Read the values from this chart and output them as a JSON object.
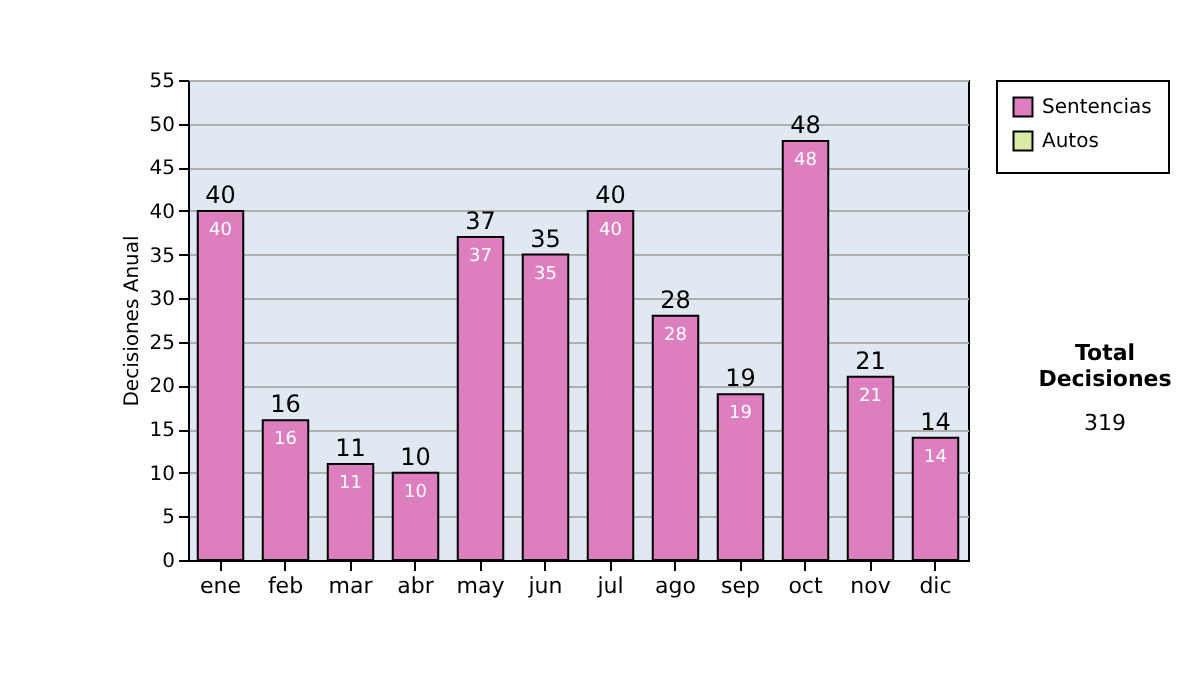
{
  "chart_data": {
    "type": "bar",
    "stacked": true,
    "ylabel": "Decisiones Anual",
    "categories": [
      "ene",
      "feb",
      "mar",
      "abr",
      "may",
      "jun",
      "jul",
      "ago",
      "sep",
      "oct",
      "nov",
      "dic"
    ],
    "series": [
      {
        "name": "Sentencias",
        "color": "#dd7fbf",
        "values": [
          40,
          16,
          11,
          10,
          37,
          35,
          40,
          28,
          19,
          48,
          21,
          14
        ],
        "value_labels": [
          "40",
          "16",
          "11",
          "10",
          "37",
          "35",
          "40",
          "28",
          "19",
          "48",
          "21",
          "14"
        ]
      },
      {
        "name": "Autos",
        "color": "#d9eba5",
        "values": [
          0,
          0,
          0,
          0,
          0,
          0,
          0,
          0,
          0,
          0,
          0,
          0
        ]
      }
    ],
    "totals": [
      "40",
      "16",
      "11",
      "10",
      "37",
      "35",
      "40",
      "28",
      "19",
      "48",
      "21",
      "14"
    ],
    "ylim": [
      0,
      55
    ],
    "yticks": [
      0,
      5,
      10,
      15,
      20,
      25,
      30,
      35,
      40,
      45,
      50,
      55
    ],
    "grid": "y",
    "legend": "right",
    "annotations": [
      "Total Decisiones",
      "319"
    ]
  }
}
